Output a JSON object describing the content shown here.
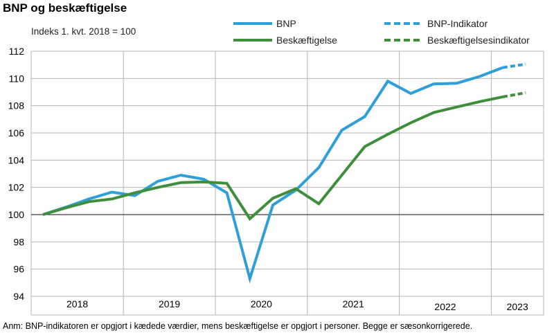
{
  "title": "BNP og beskæftigelse",
  "subtitle": "Indeks 1. kvt. 2018 = 100",
  "note": "Anm: BNP-indikatoren er opgjort i kædede værdier, mens beskæftigelse er opgjort i personer. Begge er sæsonkorrigerede.",
  "colors": {
    "bnp": "#2e9fd8",
    "employment": "#3f8e3c",
    "grid": "#b4b4b4",
    "baseline": "#3a3a3a"
  },
  "chart_data": {
    "type": "line",
    "title": "BNP og beskæftigelse",
    "ylabel": "Indeks 1. kvt. 2018 = 100",
    "ylim": [
      94,
      112
    ],
    "yticks": [
      94,
      96,
      98,
      100,
      102,
      104,
      106,
      108,
      110,
      112
    ],
    "years": [
      "2018",
      "2019",
      "2020",
      "2021",
      "2022",
      "2023"
    ],
    "x": [
      "2018K1",
      "2018K2",
      "2018K3",
      "2018K4",
      "2019K1",
      "2019K2",
      "2019K3",
      "2019K4",
      "2020K1",
      "2020K2",
      "2020K3",
      "2020K4",
      "2021K1",
      "2021K2",
      "2021K3",
      "2021K4",
      "2022K1",
      "2022K2",
      "2022K3",
      "2022K4",
      "2023K1",
      "2023K2"
    ],
    "grid": true,
    "legend": "top-right",
    "series": [
      {
        "name": "BNP",
        "style": "solid",
        "color_key": "bnp",
        "values": [
          100.0,
          100.55,
          101.15,
          101.65,
          101.4,
          102.45,
          102.9,
          102.6,
          101.6,
          95.3,
          100.7,
          101.8,
          103.45,
          106.2,
          107.2,
          109.8,
          108.9,
          109.6,
          109.65,
          110.15,
          110.8,
          null
        ]
      },
      {
        "name": "Beskæftigelse",
        "style": "solid",
        "color_key": "employment",
        "values": [
          100.0,
          100.5,
          100.95,
          101.15,
          101.6,
          102.0,
          102.35,
          102.4,
          102.3,
          99.7,
          101.2,
          101.9,
          100.8,
          102.9,
          105.0,
          105.9,
          106.75,
          107.5,
          107.9,
          108.3,
          108.65,
          null
        ]
      },
      {
        "name": "BNP-Indikator",
        "style": "dashed",
        "color_key": "bnp",
        "values": [
          null,
          null,
          null,
          null,
          null,
          null,
          null,
          null,
          null,
          null,
          null,
          null,
          null,
          null,
          null,
          null,
          null,
          null,
          null,
          null,
          110.8,
          111.05
        ]
      },
      {
        "name": "Beskæftigelsesindikator",
        "style": "dashed",
        "color_key": "employment",
        "values": [
          null,
          null,
          null,
          null,
          null,
          null,
          null,
          null,
          null,
          null,
          null,
          null,
          null,
          null,
          null,
          null,
          null,
          null,
          null,
          null,
          108.65,
          108.95
        ]
      }
    ]
  }
}
